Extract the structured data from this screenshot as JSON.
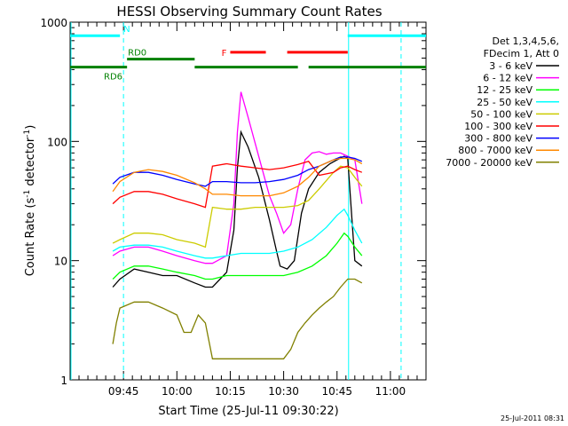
{
  "chart_data": {
    "type": "line",
    "title": "HESSI Observing Summary Count Rates",
    "xlabel": "Start Time (25-Jul-11 09:30:22)",
    "ylabel": "Count Rate (s⁻¹ detector⁻¹)",
    "y_scale": "log",
    "ylim": [
      1,
      1000
    ],
    "xlim_minutes": [
      0,
      100
    ],
    "x_ticks": [
      {
        "t": 15,
        "label": "09:45"
      },
      {
        "t": 30,
        "label": "10:00"
      },
      {
        "t": 45,
        "label": "10:15"
      },
      {
        "t": 60,
        "label": "10:30"
      },
      {
        "t": 75,
        "label": "10:45"
      },
      {
        "t": 90,
        "label": "11:00"
      }
    ],
    "y_ticks": [
      {
        "v": 1,
        "label": "1"
      },
      {
        "v": 10,
        "label": "10"
      },
      {
        "v": 100,
        "label": "100"
      },
      {
        "v": 1000,
        "label": "1000"
      }
    ],
    "legend_header": [
      "Det 1,3,4,5,6,",
      "FDecim 1, Att 0"
    ],
    "series": [
      {
        "name": "3 - 6 keV",
        "color": "#000000",
        "x": [
          12,
          14,
          18,
          22,
          26,
          30,
          35,
          38,
          40,
          44,
          46,
          47,
          48,
          50,
          53,
          56,
          58,
          59,
          61,
          63,
          65,
          67,
          70,
          73,
          75,
          77,
          78,
          80,
          82
        ],
        "y": [
          6,
          7,
          8.5,
          8,
          7.5,
          7.5,
          6.5,
          6,
          6,
          8,
          18,
          60,
          120,
          90,
          50,
          22,
          12,
          9,
          8.5,
          10,
          25,
          40,
          55,
          65,
          70,
          75,
          72,
          10,
          9
        ]
      },
      {
        "name": "6 - 12 keV",
        "color": "#ff00ff",
        "x": [
          12,
          14,
          18,
          22,
          26,
          30,
          35,
          38,
          40,
          44,
          46,
          47,
          48,
          50,
          53,
          56,
          58,
          60,
          62,
          64,
          66,
          68,
          70,
          72,
          74,
          76,
          78,
          80,
          82
        ],
        "y": [
          11,
          12,
          13,
          13,
          12,
          11,
          10,
          9.5,
          9.5,
          11,
          30,
          120,
          260,
          160,
          75,
          35,
          25,
          17,
          20,
          40,
          70,
          80,
          82,
          78,
          80,
          80,
          75,
          70,
          30
        ]
      },
      {
        "name": "12 - 25 keV",
        "color": "#00ff00",
        "x": [
          12,
          14,
          18,
          22,
          26,
          30,
          35,
          38,
          40,
          44,
          48,
          52,
          56,
          60,
          64,
          68,
          72,
          75,
          77,
          78,
          80,
          82
        ],
        "y": [
          7,
          8,
          9,
          9,
          8.5,
          8,
          7.5,
          7,
          7,
          7.5,
          7.5,
          7.5,
          7.5,
          7.5,
          8,
          9,
          11,
          14,
          17,
          16,
          13,
          11
        ]
      },
      {
        "name": "25 - 50 keV",
        "color": "#00ffff",
        "x": [
          12,
          14,
          18,
          22,
          26,
          30,
          35,
          38,
          40,
          44,
          48,
          52,
          56,
          60,
          64,
          68,
          72,
          75,
          77,
          78,
          80,
          82
        ],
        "y": [
          12,
          13,
          13.5,
          13.5,
          13,
          12,
          11,
          10.5,
          10.5,
          11,
          11.5,
          11.5,
          11.5,
          12,
          13,
          15,
          19,
          24,
          27,
          24,
          18,
          14
        ]
      },
      {
        "name": "50 - 100 keV",
        "color": "#cccc00",
        "x": [
          12,
          14,
          18,
          22,
          26,
          30,
          35,
          38,
          40,
          44,
          48,
          52,
          56,
          60,
          64,
          67,
          70,
          74,
          76,
          78,
          80,
          82
        ],
        "y": [
          14,
          15,
          17,
          17,
          16.5,
          15,
          14,
          13,
          28,
          27,
          27,
          28,
          28,
          28,
          29,
          32,
          40,
          55,
          62,
          60,
          50,
          42
        ]
      },
      {
        "name": "100 - 300 keV",
        "color": "#ff0000",
        "x": [
          12,
          14,
          18,
          22,
          26,
          30,
          35,
          38,
          40,
          44,
          48,
          52,
          56,
          60,
          64,
          67,
          70,
          74,
          76,
          78,
          80,
          82
        ],
        "y": [
          30,
          34,
          38,
          38,
          36,
          33,
          30,
          28,
          62,
          65,
          62,
          60,
          58,
          60,
          64,
          68,
          52,
          55,
          60,
          62,
          58,
          55
        ]
      },
      {
        "name": "300 - 800 keV",
        "color": "#0000ff",
        "x": [
          12,
          14,
          18,
          22,
          26,
          30,
          35,
          38,
          40,
          44,
          48,
          52,
          56,
          60,
          64,
          67,
          70,
          74,
          76,
          78,
          80,
          82
        ],
        "y": [
          44,
          50,
          55,
          55,
          52,
          48,
          44,
          42,
          46,
          46,
          45,
          45,
          46,
          48,
          52,
          58,
          62,
          70,
          74,
          74,
          72,
          68
        ]
      },
      {
        "name": "800 - 7000 keV",
        "color": "#ff8800",
        "x": [
          12,
          14,
          18,
          22,
          26,
          30,
          35,
          38,
          40,
          44,
          48,
          52,
          56,
          60,
          64,
          67,
          70,
          74,
          76,
          78,
          80,
          82
        ],
        "y": [
          38,
          46,
          55,
          58,
          56,
          52,
          45,
          40,
          36,
          36,
          35,
          35,
          35,
          37,
          42,
          50,
          62,
          70,
          72,
          72,
          70,
          65
        ]
      },
      {
        "name": "7000 - 20000 keV",
        "color": "#808000",
        "x": [
          12,
          13,
          14,
          18,
          22,
          26,
          30,
          32,
          34,
          36,
          38,
          40,
          44,
          48,
          52,
          56,
          60,
          62,
          64,
          66,
          68,
          70,
          72,
          74,
          76,
          78,
          80,
          82
        ],
        "y": [
          2,
          3,
          4,
          4.5,
          4.5,
          4,
          3.5,
          2.5,
          2.5,
          3.5,
          3,
          1.5,
          1.5,
          1.5,
          1.5,
          1.5,
          1.5,
          1.8,
          2.5,
          3,
          3.5,
          4,
          4.5,
          5,
          6,
          7,
          7,
          6.5
        ]
      }
    ],
    "orbit_flags": [
      {
        "label": "N",
        "color": "#00ffff",
        "y": 770,
        "segments": [
          [
            0,
            14
          ],
          [
            78,
            100
          ]
        ]
      },
      {
        "label": "F",
        "color": "#ff0000",
        "y": 560,
        "segments": [
          [
            45,
            55
          ],
          [
            61,
            78
          ]
        ]
      },
      {
        "label": "RD0",
        "color": "#008000",
        "y": 490,
        "segments": [
          [
            16,
            35
          ]
        ]
      },
      {
        "label": "RD6",
        "color": "#008000",
        "y": 420,
        "segments": [
          [
            0,
            16
          ],
          [
            35,
            64
          ],
          [
            67,
            100
          ]
        ]
      }
    ],
    "vertical_markers_minutes": [
      15,
      93
    ],
    "vertical_markers_solid_minutes": [
      0,
      78
    ]
  },
  "footer_timestamp": "25-Jul-2011 08:31"
}
